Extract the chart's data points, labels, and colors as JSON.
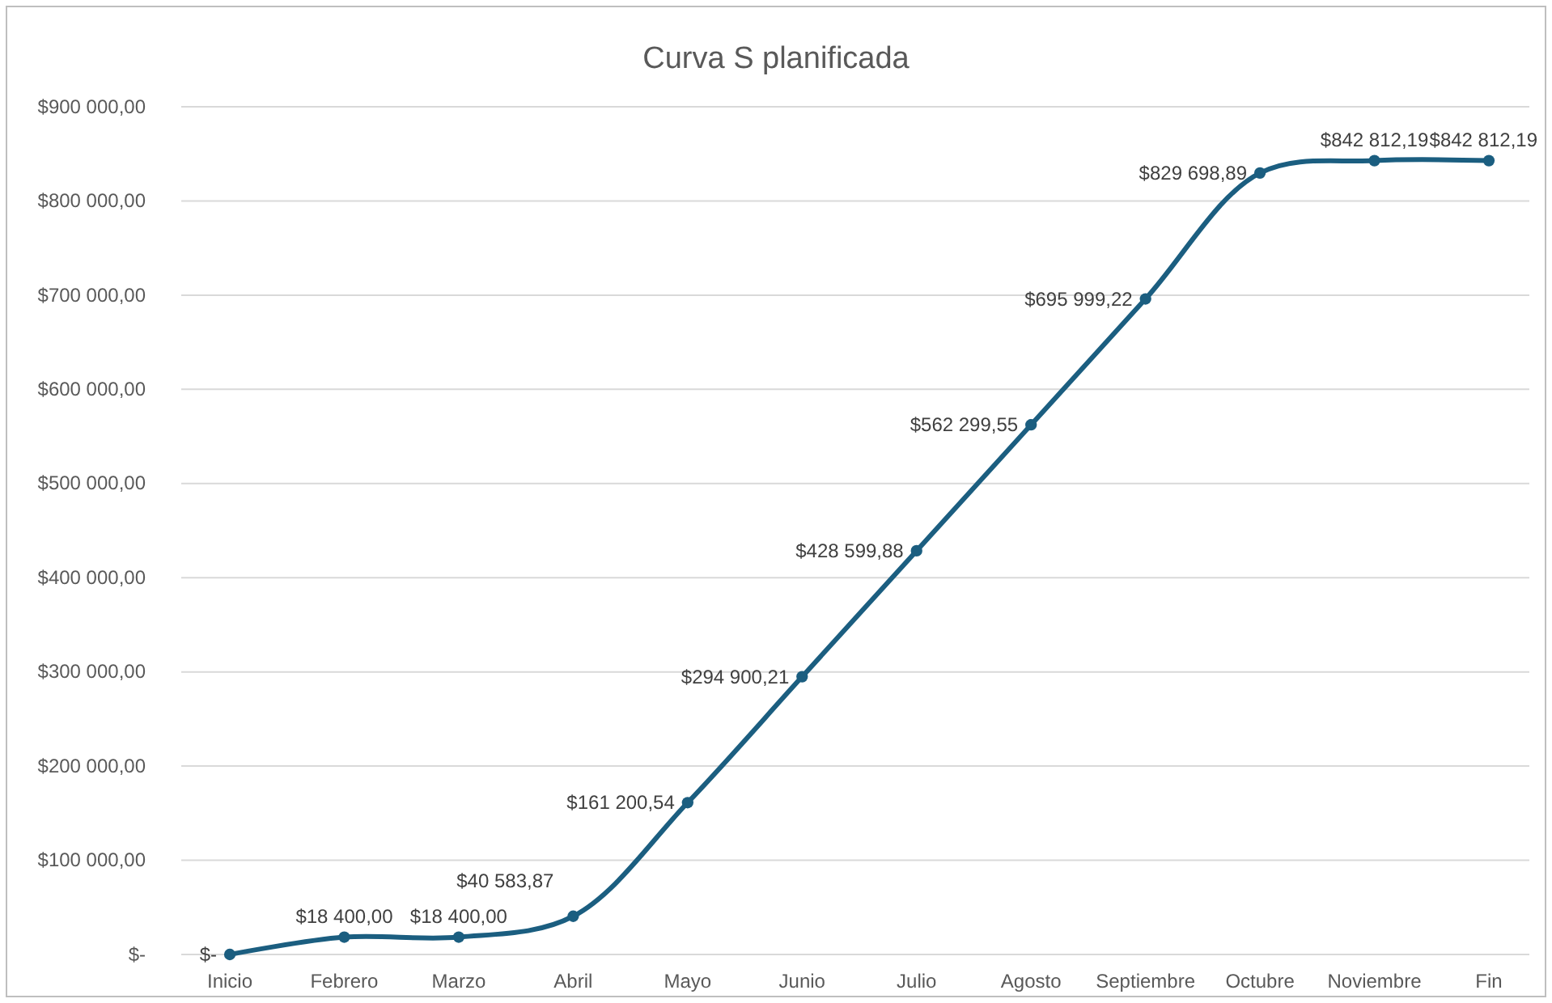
{
  "chart_data": {
    "type": "line",
    "title": "Curva S planificada",
    "categories": [
      "Inicio",
      "Febrero",
      "Marzo",
      "Abril",
      "Mayo",
      "Junio",
      "Julio",
      "Agosto",
      "Septiembre",
      "Octubre",
      "Noviembre",
      "Fin"
    ],
    "series": [
      {
        "color": "#1b5e80",
        "values": [
          0,
          18400,
          18400,
          40583.87,
          161200.54,
          294900.21,
          428599.88,
          562299.55,
          695999.22,
          829698.89,
          842812.19,
          842812.19
        ],
        "value_labels": [
          "$-",
          "$18 400,00",
          "$18 400,00",
          "$40 583,87",
          "$161 200,54",
          "$294 900,21",
          "$428 599,88",
          "$562 299,55",
          "$695 999,22",
          "$829 698,89",
          "$842 812,19",
          "$842 812,19"
        ]
      }
    ],
    "ylim": [
      0,
      900000
    ],
    "yticks": [
      {
        "value": 0,
        "label": "$-"
      },
      {
        "value": 100000,
        "label": "$100 000,00"
      },
      {
        "value": 200000,
        "label": "$200 000,00"
      },
      {
        "value": 300000,
        "label": "$300 000,00"
      },
      {
        "value": 400000,
        "label": "$400 000,00"
      },
      {
        "value": 500000,
        "label": "$500 000,00"
      },
      {
        "value": 600000,
        "label": "$600 000,00"
      },
      {
        "value": 700000,
        "label": "$700 000,00"
      },
      {
        "value": 800000,
        "label": "$800 000,00"
      },
      {
        "value": 900000,
        "label": "$900 000,00"
      }
    ],
    "grid": "y",
    "marker": "circle",
    "line_style": "solid"
  }
}
